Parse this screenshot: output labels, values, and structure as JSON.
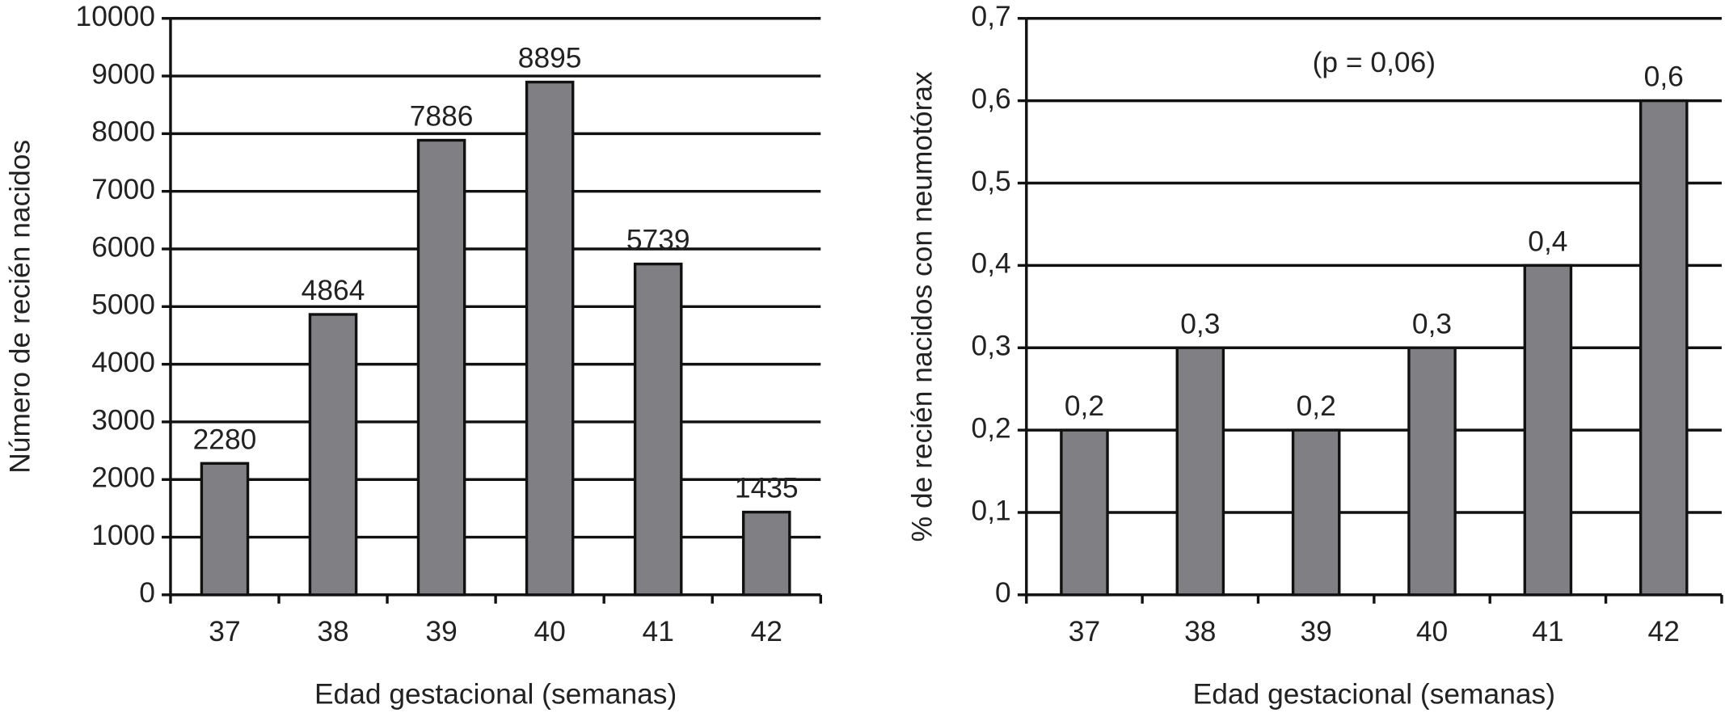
{
  "chart_data": [
    {
      "type": "bar",
      "categories": [
        "37",
        "38",
        "39",
        "40",
        "41",
        "42"
      ],
      "values": [
        2280,
        4864,
        7886,
        8895,
        5739,
        1435
      ],
      "color": "#808084",
      "ylim": [
        0,
        10000
      ],
      "yticks": [
        0,
        1000,
        2000,
        3000,
        4000,
        5000,
        6000,
        7000,
        8000,
        9000,
        10000
      ],
      "grid": true,
      "ylabel": "Número de recién nacidos",
      "xlabel": "Edad gestacional (semanas)"
    },
    {
      "type": "bar",
      "categories": [
        "37",
        "38",
        "39",
        "40",
        "41",
        "42"
      ],
      "values": [
        0.2,
        0.3,
        0.2,
        0.3,
        0.4,
        0.6
      ],
      "value_labels": [
        "0,2",
        "0,3",
        "0,2",
        "0,3",
        "0,4",
        "0,6"
      ],
      "color": "#808084",
      "ylim": [
        0,
        0.7
      ],
      "yticks": [
        0,
        {
          "value": 0.1,
          "label": "0,1"
        },
        {
          "value": 0.2,
          "label": "0,2"
        },
        {
          "value": 0.3,
          "label": "0,3"
        },
        {
          "value": 0.4,
          "label": "0,4"
        },
        {
          "value": 0.5,
          "label": "0,5"
        },
        {
          "value": 0.6,
          "label": "0,6"
        },
        {
          "value": 0.7,
          "label": "0,7"
        }
      ],
      "grid": true,
      "ylabel": "% de recién nacidos con neumotórax",
      "xlabel": "Edad gestacional (semanas)",
      "annotation": "(p = 0,06)"
    }
  ]
}
